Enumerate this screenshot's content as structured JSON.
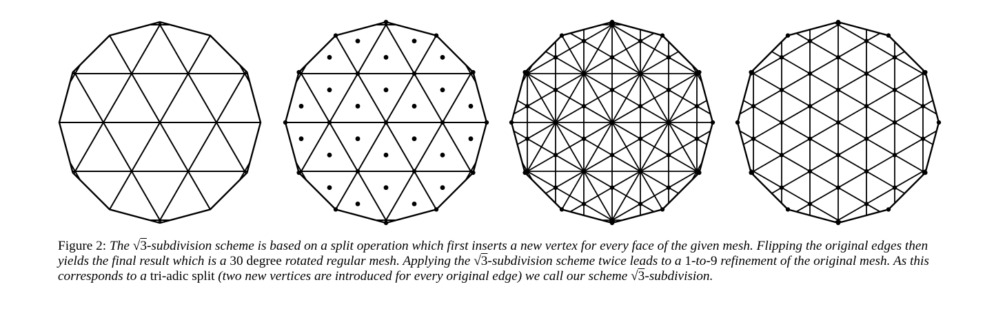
{
  "figure": {
    "panels": [
      {
        "name": "original-mesh"
      },
      {
        "name": "face-vertices-inserted"
      },
      {
        "name": "split-mesh"
      },
      {
        "name": "flipped-result"
      }
    ]
  },
  "caption": {
    "label": "Figure 2:",
    "segments": [
      {
        "text": " The ",
        "italic": true
      },
      {
        "text": "√3",
        "sqrt": true
      },
      {
        "text": "-subdivision scheme is based on a split operation which first inserts a new vertex for every face of the given mesh. Flipping the original edges then yields the final result which is a ",
        "italic": true
      },
      {
        "text": "30 degree",
        "italic": false
      },
      {
        "text": " rotated regular mesh. Applying the ",
        "italic": true
      },
      {
        "text": "√3",
        "sqrt": true
      },
      {
        "text": "-subdivision scheme twice leads to a ",
        "italic": true
      },
      {
        "text": "1",
        "italic": false
      },
      {
        "text": "-to-",
        "italic": true
      },
      {
        "text": "9",
        "italic": false
      },
      {
        "text": " refinement of the original mesh. As this corresponds to a ",
        "italic": true
      },
      {
        "text": "tri-adic split",
        "italic": false
      },
      {
        "text": " (two new vertices are introduced for every original edge) we call our scheme ",
        "italic": true
      },
      {
        "text": "√3",
        "sqrt": true
      },
      {
        "text": "-subdivision.",
        "italic": true
      }
    ]
  }
}
